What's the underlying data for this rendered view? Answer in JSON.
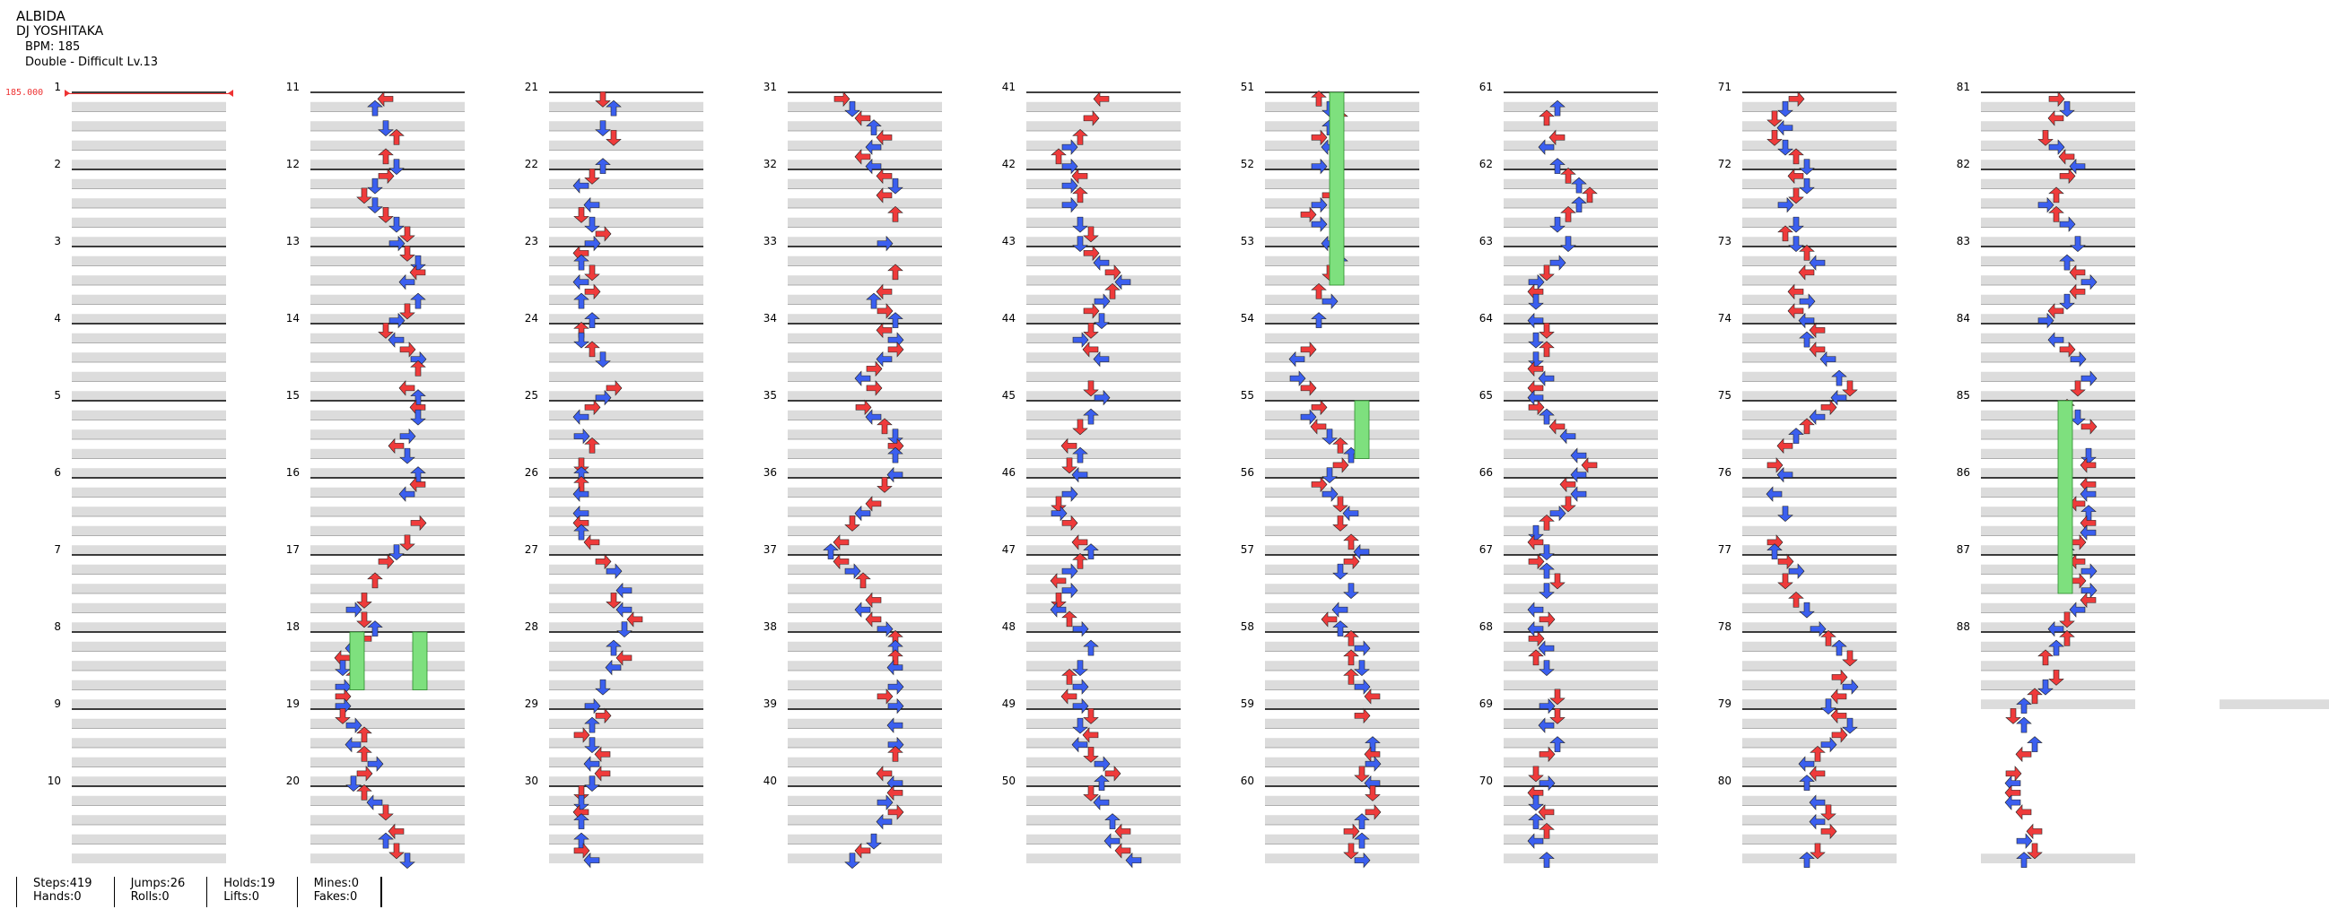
{
  "song": {
    "title": "ALBIDA",
    "artist": "DJ YOSHITAKA",
    "bpm_text": "BPM: 185",
    "difficulty_text": "Double - Difficult Lv.13"
  },
  "bpm_change": {
    "label": "185.000"
  },
  "colors": {
    "red": "#ef3b3b",
    "blue": "#3b5fef",
    "yellow": "#f6e04a",
    "hold": "#7ee07e",
    "row_fill": "#dcdcdc",
    "line": "#000000"
  },
  "measures": [
    "1",
    "2",
    "3",
    "4",
    "5",
    "6",
    "7",
    "8",
    "9",
    "10",
    "11",
    "12",
    "13",
    "14",
    "15",
    "16",
    "17",
    "18",
    "19",
    "20",
    "21",
    "22",
    "23",
    "24",
    "25",
    "26",
    "27",
    "28",
    "29",
    "30",
    "31",
    "32",
    "33",
    "34",
    "35",
    "36",
    "37",
    "38",
    "39",
    "40",
    "41",
    "42",
    "43",
    "44",
    "45",
    "46",
    "47",
    "48",
    "49",
    "50",
    "51",
    "52",
    "53",
    "54",
    "55",
    "56",
    "57",
    "58",
    "59",
    "60",
    "61",
    "62",
    "63",
    "64",
    "65",
    "66",
    "67",
    "68",
    "69",
    "70",
    "71",
    "72",
    "73",
    "74",
    "75",
    "76",
    "77",
    "78",
    "79",
    "80",
    "81",
    "82",
    "83",
    "84",
    "85",
    "86",
    "87",
    "88"
  ],
  "stats": [
    {
      "a": "Steps:419",
      "b": "Hands:0"
    },
    {
      "a": "Jumps:26",
      "b": "Rolls:0"
    },
    {
      "a": "Holds:19",
      "b": "Lifts:0"
    },
    {
      "a": "Mines:0",
      "b": "Fakes:0"
    }
  ],
  "notes": [
    [
      "",
      "",
      "",
      "",
      "",
      "",
      "",
      "",
      "",
      "",
      "",
      "",
      "",
      "",
      "",
      "",
      "",
      "",
      "",
      "",
      "",
      "",
      "",
      "",
      "",
      "",
      "",
      "",
      "",
      "",
      "",
      "",
      "",
      "",
      "",
      "",
      "",
      "",
      "",
      "",
      "",
      "",
      "",
      "",
      "",
      "",
      "",
      "",
      "",
      "",
      "",
      "",
      "",
      "",
      "",
      "",
      "",
      "",
      "",
      "",
      "",
      "",
      "",
      "",
      "",
      "",
      "",
      "",
      "",
      "",
      "",
      "",
      "",
      "",
      "",
      "",
      "",
      "",
      "",
      ""
    ],
    [
      "...L....",
      "..R.....",
      "..L.....",
      "......U.",
      "..L.....",
      "...L....",
      "...U....",
      "..R.....",
      "..L.....",
      "..L.....",
      "..R.....",
      "..R.....",
      "..L.....",
      "..L.....",
      "..L.....",
      "...U....",
      "...U....",
      "..L.....",
      "...R....",
      "..L.....",
      "...U....",
      "...R....",
      "..L.....",
      "...U....",
      "..L.....",
      "..L.....",
      "...D....",
      "...U....",
      "...U....",
      "..L.....",
      "..L.....",
      "....R...",
      "...D....",
      "...D....",
      "..L.....",
      "....D...",
      "..L.....",
      "...D....",
      "..L.....",
      "..L.....",
      "...U....",
      "...U....",
      "...R....",
      "...D....",
      "...U....",
      "...U....",
      "..L.....",
      "..L.....",
      "...L....",
      "..L.....",
      "...U....",
      "..L.....",
      "..L.....",
      "..U.....",
      "..L.....",
      "...D....",
      "...U....",
      "..L.....",
      "..R.....",
      "..D.....",
      "..U.....",
      "..D....."
    ],
    [
      "L.......",
      "..R.....",
      ".D......",
      "..U.....",
      "...R....",
      "....L...",
      "...R....",
      "....R...",
      ".L......",
      "..D.....",
      "L.......",
      ".D......",
      "..U.....",
      "...R....",
      ".D......",
      "..U.....",
      "....D...",
      "...R....",
      "....U...",
      "...D....",
      "....U...",
      "....D...",
      "...R....",
      "....U...",
      "....R...",
      "..L.....",
      "...D....",
      "...L....",
      "...L....",
      "....U...",
      "...D....",
      "....R...",
      "....R...",
      "...L....",
      "....U...",
      "...L....",
      "....D...",
      "...R....",
      "...L....",
      "...D....",
      "L.......",
      ".D......",
      "..U.....",
      "...R....",
      "..L.....",
      "..D.....",
      "...R....",
      "....D...",
      "..L.....",
      "....R..."
    ],
    [
      "........",
      "........",
      "........",
      "........",
      "........",
      "........",
      "........",
      "........",
      "........",
      "........",
      "........",
      "........",
      "........",
      "........",
      "........",
      "........",
      "........",
      "........",
      "........",
      "........",
      "........",
      "........",
      "........",
      "........",
      "........",
      "........",
      "........",
      "........",
      "........",
      "........",
      "........",
      "........",
      "........",
      "........",
      "........",
      "........",
      "........",
      "........",
      "........",
      "........",
      "........",
      "........",
      "........",
      "........",
      "........",
      "........",
      "........",
      "........",
      "........",
      "........",
      "........",
      "........",
      "........",
      "........",
      "........",
      "........",
      "........",
      "........",
      "........",
      "........",
      "........",
      "........"
    ],
    [
      "........",
      "........",
      "........",
      "........",
      "........",
      "........",
      "........",
      "........",
      "........",
      "........",
      "........",
      "........",
      "........",
      "........",
      "........",
      "........",
      "........",
      "........",
      "........",
      "........",
      "........",
      "........",
      "........",
      "........",
      "........",
      "........",
      "........",
      "........",
      "........",
      "........",
      "........",
      "........",
      "........",
      "........",
      "........",
      "........",
      "........",
      "........",
      "........",
      "........",
      "........",
      "........",
      "........",
      "........",
      "........",
      "........",
      "........",
      "........",
      "........",
      "........",
      "........",
      "........",
      "........",
      "........",
      "........",
      "........",
      "........",
      "........",
      "........",
      "........",
      "........",
      "........"
    ],
    [
      "........",
      "........",
      "........",
      "........",
      "........",
      "........",
      "........",
      "........",
      "........",
      "........",
      "........",
      "........",
      "........",
      "........",
      "........",
      "........",
      "........",
      "........",
      "........",
      "........",
      "........",
      "........",
      "........",
      "........",
      "........",
      "........",
      "........",
      "........",
      "........",
      "........",
      "........",
      "........",
      "........",
      "........",
      "........",
      "........",
      "........",
      "........",
      "........",
      "........",
      "........",
      "........",
      "........",
      "........",
      "........",
      "........",
      "........",
      "........",
      "........",
      "........",
      "........",
      "........",
      "........",
      "........",
      "........",
      "........",
      "........",
      "........",
      "........",
      "........",
      "........",
      "........"
    ]
  ]
}
